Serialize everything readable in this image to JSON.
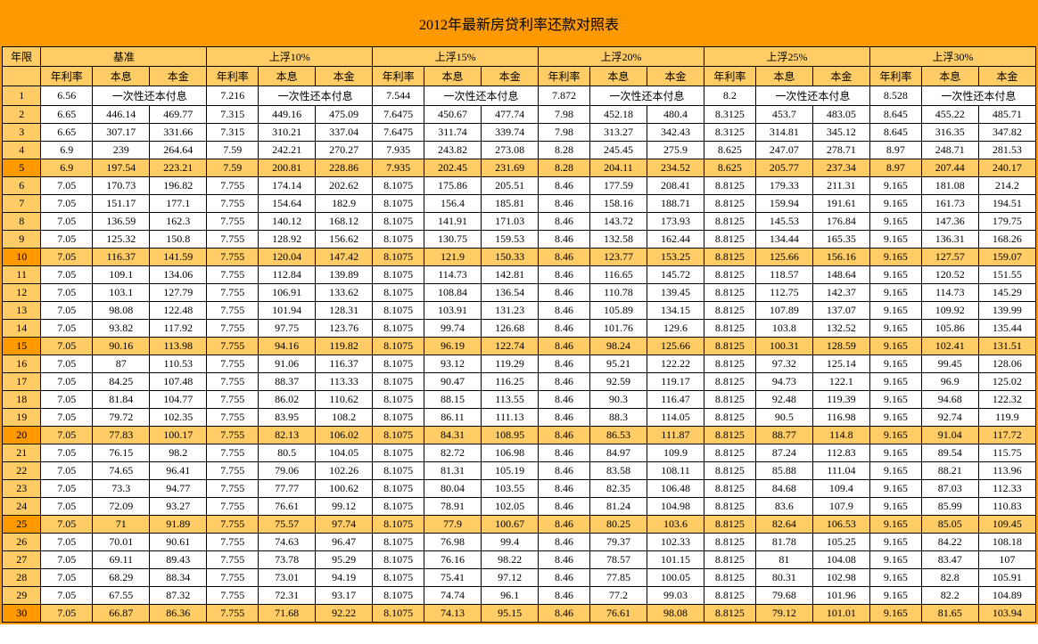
{
  "title": "2012年最新房贷利率还款对照表",
  "headers": {
    "year": "年限",
    "groups": [
      "基准",
      "上浮10%",
      "上浮15%",
      "上浮20%",
      "上浮25%",
      "上浮30%"
    ],
    "sub": [
      "年利率",
      "本息",
      "本金"
    ]
  },
  "lumpsum": "一次性还本付息",
  "colors": {
    "frame": "#ff9900",
    "header_bg": "#ffcc66",
    "highlight_bg": "#ffcc66",
    "highlight_year_bg": "#ff9900",
    "cell_bg": "#ffffff",
    "border": "#000000",
    "text": "#000000"
  },
  "fonts": {
    "title_size_pt": 16,
    "cell_size_pt": 12,
    "family": "SimSun"
  },
  "highlight_rows": [
    5,
    10,
    15,
    20,
    25,
    30
  ],
  "rows": [
    {
      "y": 1,
      "g": [
        [
          "6.56",
          "LUMP",
          "LUMP"
        ],
        [
          "7.216",
          "LUMP",
          "LUMP"
        ],
        [
          "7.544",
          "LUMP",
          "LUMP"
        ],
        [
          "7.872",
          "LUMP",
          "LUMP"
        ],
        [
          "8.2",
          "LUMP",
          "LUMP"
        ],
        [
          "8.528",
          "LUMP",
          "LUMP"
        ]
      ]
    },
    {
      "y": 2,
      "g": [
        [
          "6.65",
          "446.14",
          "469.77"
        ],
        [
          "7.315",
          "449.16",
          "475.09"
        ],
        [
          "7.6475",
          "450.67",
          "477.74"
        ],
        [
          "7.98",
          "452.18",
          "480.4"
        ],
        [
          "8.3125",
          "453.7",
          "483.05"
        ],
        [
          "8.645",
          "455.22",
          "485.71"
        ]
      ]
    },
    {
      "y": 3,
      "g": [
        [
          "6.65",
          "307.17",
          "331.66"
        ],
        [
          "7.315",
          "310.21",
          "337.04"
        ],
        [
          "7.6475",
          "311.74",
          "339.74"
        ],
        [
          "7.98",
          "313.27",
          "342.43"
        ],
        [
          "8.3125",
          "314.81",
          "345.12"
        ],
        [
          "8.645",
          "316.35",
          "347.82"
        ]
      ]
    },
    {
      "y": 4,
      "g": [
        [
          "6.9",
          "239",
          "264.64"
        ],
        [
          "7.59",
          "242.21",
          "270.27"
        ],
        [
          "7.935",
          "243.82",
          "273.08"
        ],
        [
          "8.28",
          "245.45",
          "275.9"
        ],
        [
          "8.625",
          "247.07",
          "278.71"
        ],
        [
          "8.97",
          "248.71",
          "281.53"
        ]
      ]
    },
    {
      "y": 5,
      "g": [
        [
          "6.9",
          "197.54",
          "223.21"
        ],
        [
          "7.59",
          "200.81",
          "228.86"
        ],
        [
          "7.935",
          "202.45",
          "231.69"
        ],
        [
          "8.28",
          "204.11",
          "234.52"
        ],
        [
          "8.625",
          "205.77",
          "237.34"
        ],
        [
          "8.97",
          "207.44",
          "240.17"
        ]
      ]
    },
    {
      "y": 6,
      "g": [
        [
          "7.05",
          "170.73",
          "196.82"
        ],
        [
          "7.755",
          "174.14",
          "202.62"
        ],
        [
          "8.1075",
          "175.86",
          "205.51"
        ],
        [
          "8.46",
          "177.59",
          "208.41"
        ],
        [
          "8.8125",
          "179.33",
          "211.31"
        ],
        [
          "9.165",
          "181.08",
          "214.2"
        ]
      ]
    },
    {
      "y": 7,
      "g": [
        [
          "7.05",
          "151.17",
          "177.1"
        ],
        [
          "7.755",
          "154.64",
          "182.9"
        ],
        [
          "8.1075",
          "156.4",
          "185.81"
        ],
        [
          "8.46",
          "158.16",
          "188.71"
        ],
        [
          "8.8125",
          "159.94",
          "191.61"
        ],
        [
          "9.165",
          "161.73",
          "194.51"
        ]
      ]
    },
    {
      "y": 8,
      "g": [
        [
          "7.05",
          "136.59",
          "162.3"
        ],
        [
          "7.755",
          "140.12",
          "168.12"
        ],
        [
          "8.1075",
          "141.91",
          "171.03"
        ],
        [
          "8.46",
          "143.72",
          "173.93"
        ],
        [
          "8.8125",
          "145.53",
          "176.84"
        ],
        [
          "9.165",
          "147.36",
          "179.75"
        ]
      ]
    },
    {
      "y": 9,
      "g": [
        [
          "7.05",
          "125.32",
          "150.8"
        ],
        [
          "7.755",
          "128.92",
          "156.62"
        ],
        [
          "8.1075",
          "130.75",
          "159.53"
        ],
        [
          "8.46",
          "132.58",
          "162.44"
        ],
        [
          "8.8125",
          "134.44",
          "165.35"
        ],
        [
          "9.165",
          "136.31",
          "168.26"
        ]
      ]
    },
    {
      "y": 10,
      "g": [
        [
          "7.05",
          "116.37",
          "141.59"
        ],
        [
          "7.755",
          "120.04",
          "147.42"
        ],
        [
          "8.1075",
          "121.9",
          "150.33"
        ],
        [
          "8.46",
          "123.77",
          "153.25"
        ],
        [
          "8.8125",
          "125.66",
          "156.16"
        ],
        [
          "9.165",
          "127.57",
          "159.07"
        ]
      ]
    },
    {
      "y": 11,
      "g": [
        [
          "7.05",
          "109.1",
          "134.06"
        ],
        [
          "7.755",
          "112.84",
          "139.89"
        ],
        [
          "8.1075",
          "114.73",
          "142.81"
        ],
        [
          "8.46",
          "116.65",
          "145.72"
        ],
        [
          "8.8125",
          "118.57",
          "148.64"
        ],
        [
          "9.165",
          "120.52",
          "151.55"
        ]
      ]
    },
    {
      "y": 12,
      "g": [
        [
          "7.05",
          "103.1",
          "127.79"
        ],
        [
          "7.755",
          "106.91",
          "133.62"
        ],
        [
          "8.1075",
          "108.84",
          "136.54"
        ],
        [
          "8.46",
          "110.78",
          "139.45"
        ],
        [
          "8.8125",
          "112.75",
          "142.37"
        ],
        [
          "9.165",
          "114.73",
          "145.29"
        ]
      ]
    },
    {
      "y": 13,
      "g": [
        [
          "7.05",
          "98.08",
          "122.48"
        ],
        [
          "7.755",
          "101.94",
          "128.31"
        ],
        [
          "8.1075",
          "103.91",
          "131.23"
        ],
        [
          "8.46",
          "105.89",
          "134.15"
        ],
        [
          "8.8125",
          "107.89",
          "137.07"
        ],
        [
          "9.165",
          "109.92",
          "139.99"
        ]
      ]
    },
    {
      "y": 14,
      "g": [
        [
          "7.05",
          "93.82",
          "117.92"
        ],
        [
          "7.755",
          "97.75",
          "123.76"
        ],
        [
          "8.1075",
          "99.74",
          "126.68"
        ],
        [
          "8.46",
          "101.76",
          "129.6"
        ],
        [
          "8.8125",
          "103.8",
          "132.52"
        ],
        [
          "9.165",
          "105.86",
          "135.44"
        ]
      ]
    },
    {
      "y": 15,
      "g": [
        [
          "7.05",
          "90.16",
          "113.98"
        ],
        [
          "7.755",
          "94.16",
          "119.82"
        ],
        [
          "8.1075",
          "96.19",
          "122.74"
        ],
        [
          "8.46",
          "98.24",
          "125.66"
        ],
        [
          "8.8125",
          "100.31",
          "128.59"
        ],
        [
          "9.165",
          "102.41",
          "131.51"
        ]
      ]
    },
    {
      "y": 16,
      "g": [
        [
          "7.05",
          "87",
          "110.53"
        ],
        [
          "7.755",
          "91.06",
          "116.37"
        ],
        [
          "8.1075",
          "93.12",
          "119.29"
        ],
        [
          "8.46",
          "95.21",
          "122.22"
        ],
        [
          "8.8125",
          "97.32",
          "125.14"
        ],
        [
          "9.165",
          "99.45",
          "128.06"
        ]
      ]
    },
    {
      "y": 17,
      "g": [
        [
          "7.05",
          "84.25",
          "107.48"
        ],
        [
          "7.755",
          "88.37",
          "113.33"
        ],
        [
          "8.1075",
          "90.47",
          "116.25"
        ],
        [
          "8.46",
          "92.59",
          "119.17"
        ],
        [
          "8.8125",
          "94.73",
          "122.1"
        ],
        [
          "9.165",
          "96.9",
          "125.02"
        ]
      ]
    },
    {
      "y": 18,
      "g": [
        [
          "7.05",
          "81.84",
          "104.77"
        ],
        [
          "7.755",
          "86.02",
          "110.62"
        ],
        [
          "8.1075",
          "88.15",
          "113.55"
        ],
        [
          "8.46",
          "90.3",
          "116.47"
        ],
        [
          "8.8125",
          "92.48",
          "119.39"
        ],
        [
          "9.165",
          "94.68",
          "122.32"
        ]
      ]
    },
    {
      "y": 19,
      "g": [
        [
          "7.05",
          "79.72",
          "102.35"
        ],
        [
          "7.755",
          "83.95",
          "108.2"
        ],
        [
          "8.1075",
          "86.11",
          "111.13"
        ],
        [
          "8.46",
          "88.3",
          "114.05"
        ],
        [
          "8.8125",
          "90.5",
          "116.98"
        ],
        [
          "9.165",
          "92.74",
          "119.9"
        ]
      ]
    },
    {
      "y": 20,
      "g": [
        [
          "7.05",
          "77.83",
          "100.17"
        ],
        [
          "7.755",
          "82.13",
          "106.02"
        ],
        [
          "8.1075",
          "84.31",
          "108.95"
        ],
        [
          "8.46",
          "86.53",
          "111.87"
        ],
        [
          "8.8125",
          "88.77",
          "114.8"
        ],
        [
          "9.165",
          "91.04",
          "117.72"
        ]
      ]
    },
    {
      "y": 21,
      "g": [
        [
          "7.05",
          "76.15",
          "98.2"
        ],
        [
          "7.755",
          "80.5",
          "104.05"
        ],
        [
          "8.1075",
          "82.72",
          "106.98"
        ],
        [
          "8.46",
          "84.97",
          "109.9"
        ],
        [
          "8.8125",
          "87.24",
          "112.83"
        ],
        [
          "9.165",
          "89.54",
          "115.75"
        ]
      ]
    },
    {
      "y": 22,
      "g": [
        [
          "7.05",
          "74.65",
          "96.41"
        ],
        [
          "7.755",
          "79.06",
          "102.26"
        ],
        [
          "8.1075",
          "81.31",
          "105.19"
        ],
        [
          "8.46",
          "83.58",
          "108.11"
        ],
        [
          "8.8125",
          "85.88",
          "111.04"
        ],
        [
          "9.165",
          "88.21",
          "113.96"
        ]
      ]
    },
    {
      "y": 23,
      "g": [
        [
          "7.05",
          "73.3",
          "94.77"
        ],
        [
          "7.755",
          "77.77",
          "100.62"
        ],
        [
          "8.1075",
          "80.04",
          "103.55"
        ],
        [
          "8.46",
          "82.35",
          "106.48"
        ],
        [
          "8.8125",
          "84.68",
          "109.4"
        ],
        [
          "9.165",
          "87.03",
          "112.33"
        ]
      ]
    },
    {
      "y": 24,
      "g": [
        [
          "7.05",
          "72.09",
          "93.27"
        ],
        [
          "7.755",
          "76.61",
          "99.12"
        ],
        [
          "8.1075",
          "78.91",
          "102.05"
        ],
        [
          "8.46",
          "81.24",
          "104.98"
        ],
        [
          "8.8125",
          "83.6",
          "107.9"
        ],
        [
          "9.165",
          "85.99",
          "110.83"
        ]
      ]
    },
    {
      "y": 25,
      "g": [
        [
          "7.05",
          "71",
          "91.89"
        ],
        [
          "7.755",
          "75.57",
          "97.74"
        ],
        [
          "8.1075",
          "77.9",
          "100.67"
        ],
        [
          "8.46",
          "80.25",
          "103.6"
        ],
        [
          "8.8125",
          "82.64",
          "106.53"
        ],
        [
          "9.165",
          "85.05",
          "109.45"
        ]
      ]
    },
    {
      "y": 26,
      "g": [
        [
          "7.05",
          "70.01",
          "90.61"
        ],
        [
          "7.755",
          "74.63",
          "96.47"
        ],
        [
          "8.1075",
          "76.98",
          "99.4"
        ],
        [
          "8.46",
          "79.37",
          "102.33"
        ],
        [
          "8.8125",
          "81.78",
          "105.25"
        ],
        [
          "9.165",
          "84.22",
          "108.18"
        ]
      ]
    },
    {
      "y": 27,
      "g": [
        [
          "7.05",
          "69.11",
          "89.43"
        ],
        [
          "7.755",
          "73.78",
          "95.29"
        ],
        [
          "8.1075",
          "76.16",
          "98.22"
        ],
        [
          "8.46",
          "78.57",
          "101.15"
        ],
        [
          "8.8125",
          "81",
          "104.08"
        ],
        [
          "9.165",
          "83.47",
          "107"
        ]
      ]
    },
    {
      "y": 28,
      "g": [
        [
          "7.05",
          "68.29",
          "88.34"
        ],
        [
          "7.755",
          "73.01",
          "94.19"
        ],
        [
          "8.1075",
          "75.41",
          "97.12"
        ],
        [
          "8.46",
          "77.85",
          "100.05"
        ],
        [
          "8.8125",
          "80.31",
          "102.98"
        ],
        [
          "9.165",
          "82.8",
          "105.91"
        ]
      ]
    },
    {
      "y": 29,
      "g": [
        [
          "7.05",
          "67.55",
          "87.32"
        ],
        [
          "7.755",
          "72.31",
          "93.17"
        ],
        [
          "8.1075",
          "74.74",
          "96.1"
        ],
        [
          "8.46",
          "77.2",
          "99.03"
        ],
        [
          "8.8125",
          "79.68",
          "101.96"
        ],
        [
          "9.165",
          "82.2",
          "104.89"
        ]
      ]
    },
    {
      "y": 30,
      "g": [
        [
          "7.05",
          "66.87",
          "86.36"
        ],
        [
          "7.755",
          "71.68",
          "92.22"
        ],
        [
          "8.1075",
          "74.13",
          "95.15"
        ],
        [
          "8.46",
          "76.61",
          "98.08"
        ],
        [
          "8.8125",
          "79.12",
          "101.01"
        ],
        [
          "9.165",
          "81.65",
          "103.94"
        ]
      ]
    }
  ]
}
